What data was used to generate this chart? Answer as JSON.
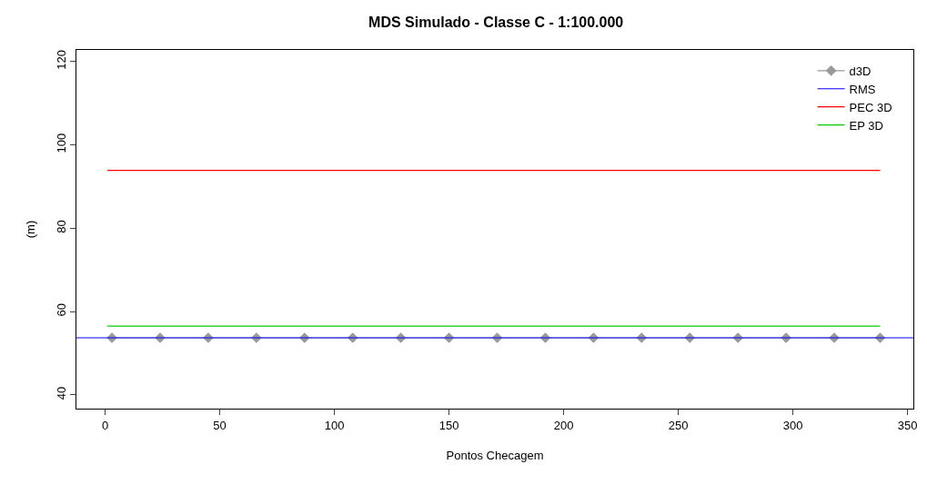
{
  "chart_data": {
    "type": "line",
    "title": "MDS Simulado - Classe C - 1:100.000",
    "xlabel": "Pontos Checagem",
    "ylabel": "(m)",
    "xlim": [
      -12.5,
      352.5
    ],
    "xticks": [
      0,
      50,
      100,
      150,
      200,
      250,
      300,
      350
    ],
    "ylim": [
      36.7,
      122.8
    ],
    "yticks": [
      40,
      60,
      80,
      100,
      120
    ],
    "grid": false,
    "legend": "top right",
    "series": [
      {
        "name": "d3D",
        "color": "#999999",
        "marker": "diamond",
        "line_style": "solid",
        "x": [
          3,
          24,
          45,
          66,
          87,
          108,
          129,
          150,
          171,
          192,
          213,
          234,
          255,
          276,
          297,
          318,
          338
        ],
        "values": [
          53.7,
          53.7,
          53.7,
          53.7,
          53.7,
          53.7,
          53.7,
          53.7,
          53.7,
          53.7,
          53.7,
          53.7,
          53.7,
          53.7,
          53.7,
          53.7,
          53.7
        ]
      },
      {
        "name": "RMS",
        "color": "#0000ff",
        "marker": "none",
        "line_style": "solid",
        "x": [
          -12.5,
          352.5
        ],
        "values": [
          53.7,
          53.7
        ]
      },
      {
        "name": "PEC 3D",
        "color": "#ff0000",
        "marker": "none",
        "line_style": "solid",
        "x": [
          1,
          338
        ],
        "values": [
          93.9,
          93.9
        ]
      },
      {
        "name": "EP 3D",
        "color": "#00cd00",
        "marker": "none",
        "line_style": "solid",
        "x": [
          1,
          338
        ],
        "values": [
          56.5,
          56.5
        ]
      }
    ]
  }
}
